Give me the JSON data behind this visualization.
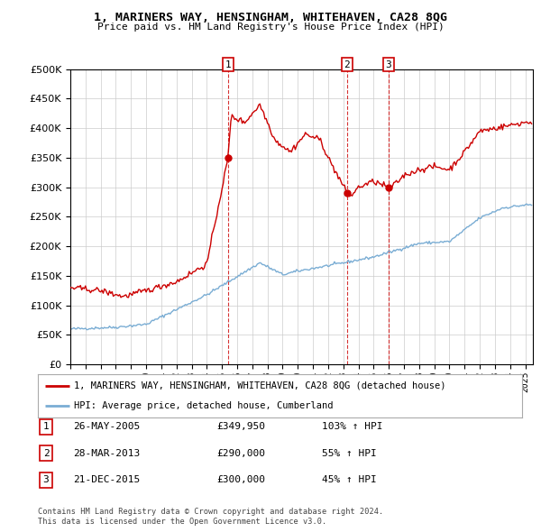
{
  "title": "1, MARINERS WAY, HENSINGHAM, WHITEHAVEN, CA28 8QG",
  "subtitle": "Price paid vs. HM Land Registry's House Price Index (HPI)",
  "transactions": [
    {
      "num": "1",
      "date": "26-MAY-2005",
      "price": 349950,
      "price_str": "£349,950",
      "pct": "103%",
      "year": 2005.4
    },
    {
      "num": "2",
      "date": "28-MAR-2013",
      "price": 290000,
      "price_str": "£290,000",
      "pct": "55%",
      "year": 2013.25
    },
    {
      "num": "3",
      "date": "21-DEC-2015",
      "price": 300000,
      "price_str": "£300,000",
      "pct": "45%",
      "year": 2015.97
    }
  ],
  "legend_property": "1, MARINERS WAY, HENSINGHAM, WHITEHAVEN, CA28 8QG (detached house)",
  "legend_hpi": "HPI: Average price, detached house, Cumberland",
  "footer1": "Contains HM Land Registry data © Crown copyright and database right 2024.",
  "footer2": "This data is licensed under the Open Government Licence v3.0.",
  "ylim": [
    0,
    500000
  ],
  "xlim_start": 1995.0,
  "xlim_end": 2025.5,
  "property_color": "#cc0000",
  "hpi_color": "#7aadd4",
  "vline_color": "#cc0000",
  "background_color": "#ffffff",
  "grid_color": "#cccccc",
  "hpi_anchors_years": [
    1995.0,
    1998.0,
    2000.0,
    2004.0,
    2007.5,
    2009.0,
    2010.0,
    2013.0,
    2015.0,
    2018.0,
    2020.0,
    2022.0,
    2023.5,
    2025.0
  ],
  "hpi_anchors_vals": [
    60000,
    63000,
    68000,
    118000,
    172000,
    152000,
    158000,
    172000,
    182000,
    205000,
    208000,
    248000,
    265000,
    270000
  ],
  "prop_anchors_years": [
    1995.0,
    1997.0,
    1998.5,
    2000.0,
    2002.0,
    2004.0,
    2005.4,
    2005.6,
    2006.5,
    2007.5,
    2008.5,
    2009.5,
    2010.5,
    2011.5,
    2012.0,
    2013.25,
    2013.5,
    2014.0,
    2015.0,
    2015.97,
    2016.0,
    2017.0,
    2018.0,
    2019.0,
    2020.0,
    2021.0,
    2022.0,
    2023.0,
    2024.0,
    2025.0
  ],
  "prop_anchors_vals": [
    130000,
    125000,
    115000,
    125000,
    140000,
    170000,
    349950,
    420000,
    410000,
    440000,
    380000,
    360000,
    390000,
    380000,
    350000,
    290000,
    285000,
    300000,
    310000,
    300000,
    295000,
    320000,
    330000,
    335000,
    330000,
    360000,
    395000,
    400000,
    405000,
    410000
  ]
}
